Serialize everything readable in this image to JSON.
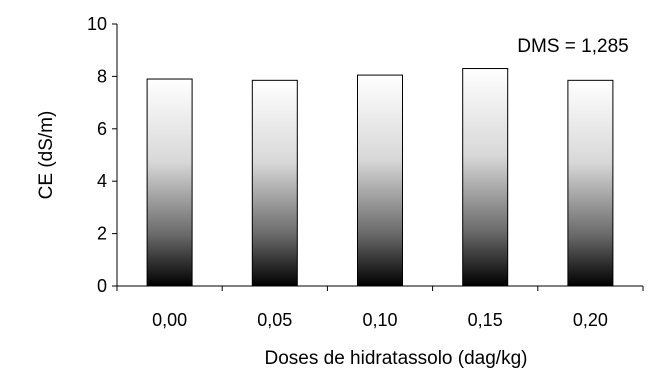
{
  "chart_data": {
    "type": "bar",
    "categories": [
      "0,00",
      "0,05",
      "0,10",
      "0,15",
      "0,20"
    ],
    "values": [
      7.9,
      7.85,
      8.05,
      8.3,
      7.85
    ],
    "xlabel": "Doses de hidratassolo (dag/kg)",
    "ylabel": "CE (dS/m)",
    "ylim": [
      0,
      10
    ],
    "yticks": [
      "0",
      "2",
      "4",
      "6",
      "8",
      "10"
    ],
    "annotation": "DMS = 1,285",
    "grid": false,
    "bar_fill": "vertical gradient white (top) to black (bottom)",
    "bar_colors": {
      "top": "#ffffff",
      "bottom": "#000000",
      "outline": "#000000"
    }
  }
}
